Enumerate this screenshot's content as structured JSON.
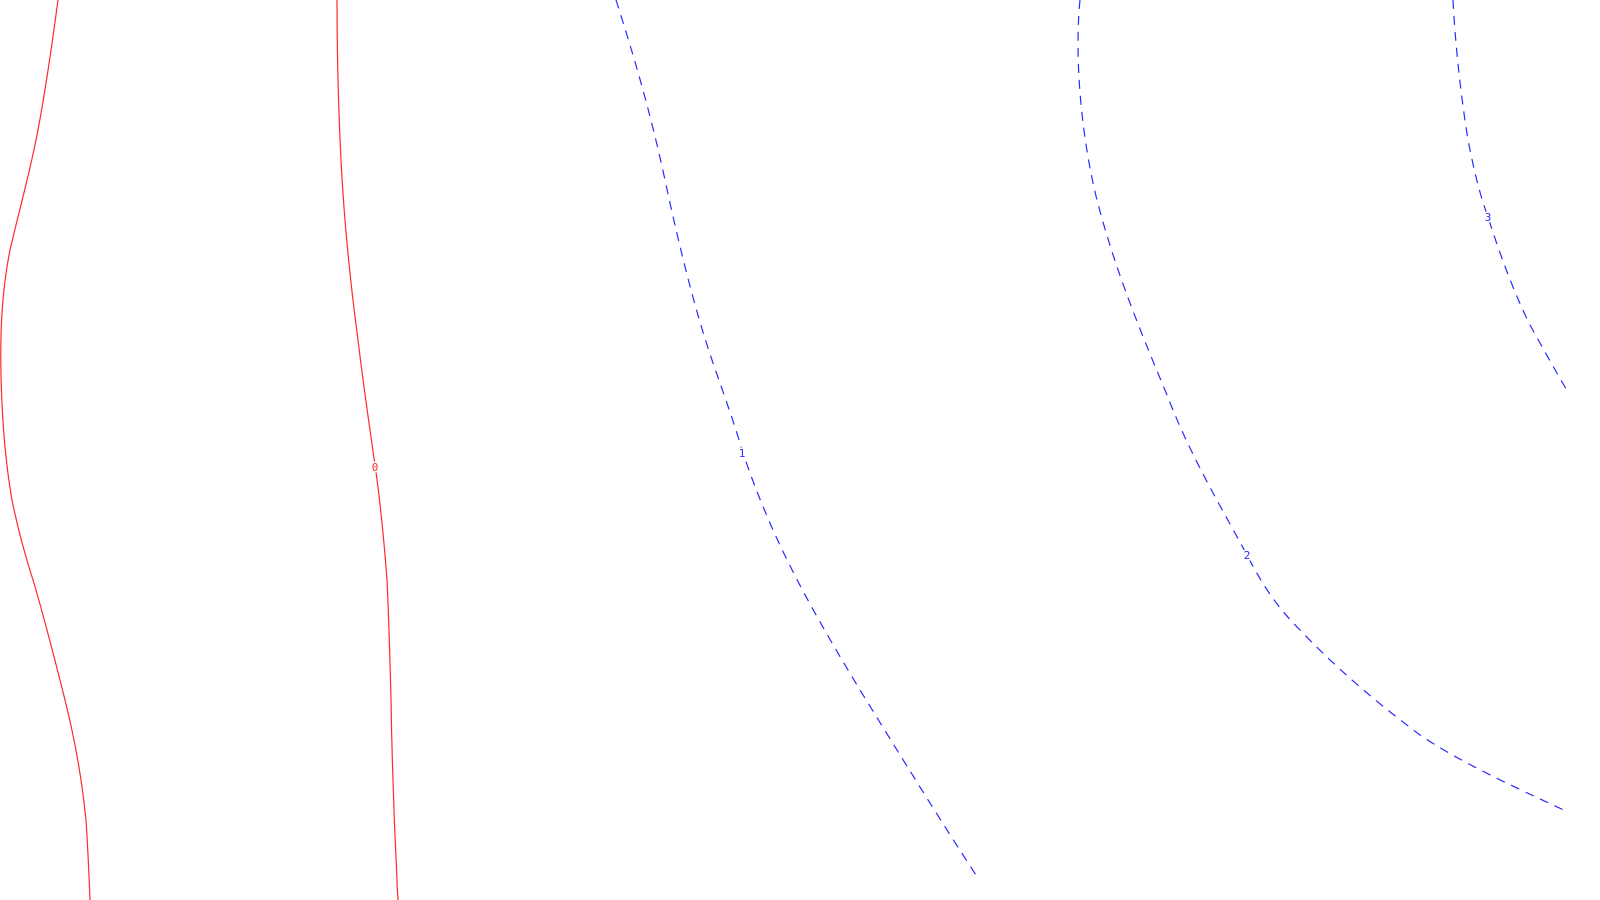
{
  "chart_data": {
    "type": "contour",
    "title": "",
    "xlabel": "",
    "ylabel": "",
    "grid": false,
    "colors": {
      "solid": "#ff2a2a",
      "dashed": "#2a2aff"
    },
    "contours": [
      {
        "id": "level-unlabeled",
        "level": "",
        "style": "solid",
        "label": ""
      },
      {
        "id": "level-0",
        "level": "0",
        "style": "solid",
        "label": "0"
      },
      {
        "id": "level-1",
        "level": "1",
        "style": "dashed",
        "label": "1"
      },
      {
        "id": "level-2",
        "level": "2",
        "style": "dashed",
        "label": "2"
      },
      {
        "id": "level-3",
        "level": "3",
        "style": "dashed",
        "label": "3"
      }
    ]
  }
}
